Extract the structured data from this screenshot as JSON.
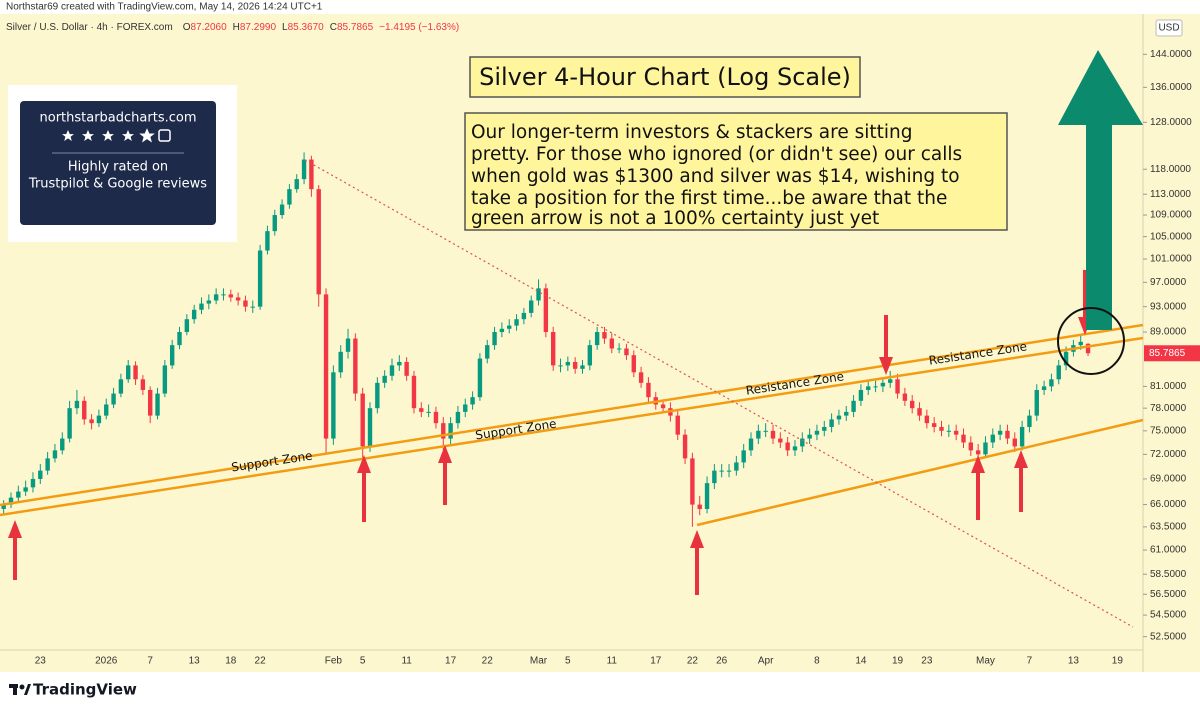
{
  "header": {
    "credit": "Northstar69 created with TradingView.com, May 14, 2026 14:24 UTC+1",
    "symbol": "Silver / U.S. Dollar · 4h · FOREX.com",
    "ohlc_legend": [
      {
        "label": "O",
        "value": "87.2060"
      },
      {
        "label": "H",
        "value": "87.2990"
      },
      {
        "label": "L",
        "value": "85.3670"
      },
      {
        "label": "C",
        "value": "85.7865"
      }
    ],
    "change": "−1.4195 (−1.63%)",
    "currency": "USD"
  },
  "badge": {
    "site": "northstarbadcharts.com",
    "line1": "Highly rated on",
    "line2": "Trustpilot & Google reviews"
  },
  "annotations": {
    "title": "Silver 4-Hour Chart (Log Scale)",
    "note": [
      "Our longer-term investors & stackers are sitting",
      "pretty. For those who ignored (or didn't see) our calls",
      "when gold was $1300 and silver was $14, wishing to",
      "take a position for the first time...be aware that the",
      "green arrow is not a 100% certainty just yet"
    ],
    "zones": [
      "Support Zone",
      "Support Zone",
      "Resistance Zone",
      "Resistance Zone"
    ]
  },
  "footer": {
    "brand": "TradingView"
  },
  "chart_data": {
    "type": "candlestick",
    "log_scale": true,
    "grid": false,
    "up_color": "#089981",
    "down_color": "#f23645",
    "ylim": [
      51.3,
      150.2
    ],
    "yticks": [
      {
        "value": 144,
        "label": "144.0000"
      },
      {
        "value": 136,
        "label": "136.0000"
      },
      {
        "value": 128,
        "label": "128.0000"
      },
      {
        "value": 118,
        "label": "118.0000"
      },
      {
        "value": 113,
        "label": "113.0000"
      },
      {
        "value": 109,
        "label": "109.0000"
      },
      {
        "value": 105,
        "label": "105.0000"
      },
      {
        "value": 101,
        "label": "101.0000"
      },
      {
        "value": 97,
        "label": "97.0000"
      },
      {
        "value": 93,
        "label": "93.0000"
      },
      {
        "value": 89,
        "label": "89.0000"
      },
      {
        "value": 81,
        "label": "81.0000"
      },
      {
        "value": 78,
        "label": "78.0000"
      },
      {
        "value": 75,
        "label": "75.0000"
      },
      {
        "value": 72,
        "label": "72.0000"
      },
      {
        "value": 69,
        "label": "69.0000"
      },
      {
        "value": 66,
        "label": "66.0000"
      },
      {
        "value": 63.5,
        "label": "63.5000"
      },
      {
        "value": 61,
        "label": "61.0000"
      },
      {
        "value": 58.5,
        "label": "58.5000"
      },
      {
        "value": 56.5,
        "label": "56.5000"
      },
      {
        "value": 54.5,
        "label": "54.5000"
      },
      {
        "value": 52.5,
        "label": "52.5000"
      }
    ],
    "last_price": 85.7865,
    "categories": [
      null,
      null,
      null,
      null,
      null,
      "23",
      null,
      null,
      null,
      null,
      null,
      null,
      null,
      null,
      "2026",
      null,
      null,
      null,
      null,
      null,
      "7",
      null,
      null,
      null,
      null,
      null,
      "13",
      null,
      null,
      null,
      null,
      "18",
      null,
      null,
      null,
      "22",
      null,
      null,
      null,
      null,
      null,
      null,
      null,
      null,
      null,
      "Feb",
      null,
      null,
      null,
      "5",
      null,
      null,
      null,
      null,
      null,
      "11",
      null,
      null,
      null,
      null,
      null,
      "17",
      null,
      null,
      null,
      null,
      "22",
      null,
      null,
      null,
      null,
      null,
      null,
      "Mar",
      null,
      null,
      null,
      "5",
      null,
      null,
      null,
      null,
      null,
      "11",
      null,
      null,
      null,
      null,
      null,
      "17",
      null,
      null,
      null,
      null,
      "22",
      null,
      null,
      null,
      "26",
      null,
      null,
      null,
      null,
      null,
      "Apr",
      null,
      null,
      null,
      null,
      null,
      null,
      "8",
      null,
      null,
      null,
      null,
      null,
      "14",
      null,
      null,
      null,
      null,
      "19",
      null,
      null,
      null,
      "23",
      null,
      null,
      null,
      null,
      null,
      null,
      null,
      "May",
      null,
      null,
      null,
      null,
      null,
      "7",
      null,
      null,
      null,
      null,
      null,
      "13",
      null,
      null,
      null,
      null,
      null,
      "19",
      null,
      null,
      null
    ],
    "ohlc": [
      [
        65.5,
        66.5,
        64.8,
        66
      ],
      [
        66,
        67.4,
        65.6,
        66.8
      ],
      [
        66.8,
        68.2,
        66.2,
        67.5
      ],
      [
        67.5,
        68.8,
        67,
        68
      ],
      [
        68,
        69.8,
        67.4,
        69
      ],
      [
        69,
        70.8,
        68.4,
        70
      ],
      [
        70,
        72.3,
        69.5,
        71.5
      ],
      [
        71.5,
        73.3,
        71,
        72.5
      ],
      [
        72.5,
        74.8,
        72,
        74
      ],
      [
        74,
        79,
        73.5,
        78
      ],
      [
        78,
        80.5,
        77.2,
        79
      ],
      [
        79,
        79.6,
        75.8,
        76.5
      ],
      [
        76.5,
        77.2,
        75.2,
        76
      ],
      [
        76,
        77.8,
        75.5,
        77
      ],
      [
        77,
        79.3,
        76.5,
        78.5
      ],
      [
        78.5,
        80.8,
        78,
        80
      ],
      [
        80,
        82.8,
        79.5,
        82
      ],
      [
        82,
        84.8,
        81.5,
        84
      ],
      [
        84,
        84.6,
        81.2,
        82
      ],
      [
        82,
        82.6,
        79.8,
        80.5
      ],
      [
        80.5,
        81,
        76,
        77
      ],
      [
        77,
        80.8,
        76.5,
        80
      ],
      [
        80,
        84.8,
        79.5,
        84
      ],
      [
        84,
        87.8,
        83.5,
        87
      ],
      [
        87,
        89.8,
        86.4,
        89
      ],
      [
        89,
        91.8,
        88.5,
        91
      ],
      [
        91,
        93.3,
        90.3,
        92.5
      ],
      [
        92.5,
        94.5,
        91.8,
        93.5
      ],
      [
        93.5,
        95,
        92.6,
        94
      ],
      [
        94,
        96,
        93.4,
        95
      ],
      [
        95,
        96,
        94,
        95
      ],
      [
        95,
        95.8,
        93.8,
        94.5
      ],
      [
        94.5,
        95.3,
        93.2,
        94
      ],
      [
        94,
        94.8,
        92.2,
        93
      ],
      [
        93,
        94,
        92,
        93
      ],
      [
        93,
        103.5,
        92.5,
        102.5
      ],
      [
        102.5,
        107,
        101.8,
        106
      ],
      [
        106,
        110,
        105.2,
        109
      ],
      [
        109,
        112,
        108.3,
        111
      ],
      [
        111,
        115,
        110.2,
        114
      ],
      [
        114,
        117,
        113.3,
        116
      ],
      [
        116,
        121.5,
        115,
        120
      ],
      [
        120,
        120.8,
        112.5,
        114
      ],
      [
        114,
        114.8,
        93,
        95
      ],
      [
        95,
        96,
        72,
        74
      ],
      [
        74,
        84,
        73.2,
        83
      ],
      [
        83,
        87,
        82.2,
        86
      ],
      [
        86,
        89.5,
        85,
        88
      ],
      [
        88,
        88.8,
        79,
        80
      ],
      [
        80,
        80.8,
        71.5,
        73
      ],
      [
        73,
        78.8,
        72.3,
        78
      ],
      [
        78,
        82.3,
        77.3,
        81.5
      ],
      [
        81.5,
        83.3,
        80.8,
        82.5
      ],
      [
        82.5,
        85,
        81.8,
        84
      ],
      [
        84,
        85.5,
        83.2,
        84.5
      ],
      [
        84.5,
        85.2,
        81.8,
        82.5
      ],
      [
        82.5,
        83.2,
        77.3,
        78
      ],
      [
        78,
        78.8,
        76.8,
        77.5
      ],
      [
        77.5,
        78.5,
        76.8,
        77.5
      ],
      [
        77.5,
        78.2,
        75.3,
        76
      ],
      [
        76,
        76.8,
        72.5,
        74
      ],
      [
        74,
        76.8,
        73.3,
        76
      ],
      [
        76,
        78.3,
        75.3,
        77.5
      ],
      [
        77.5,
        79.3,
        76.8,
        78.5
      ],
      [
        78.5,
        80.3,
        77.8,
        79.5
      ],
      [
        79.5,
        85.8,
        79,
        85
      ],
      [
        85,
        87.8,
        84.3,
        87
      ],
      [
        87,
        89.8,
        86.3,
        89
      ],
      [
        89,
        90.5,
        88.2,
        89.5
      ],
      [
        89.5,
        91,
        88.8,
        90
      ],
      [
        90,
        91.8,
        89.2,
        91
      ],
      [
        91,
        92.8,
        90.2,
        92
      ],
      [
        92,
        94.8,
        91.3,
        94
      ],
      [
        94,
        97.5,
        93.2,
        96
      ],
      [
        96,
        96.8,
        88.2,
        89
      ],
      [
        89,
        89.8,
        83.2,
        84
      ],
      [
        84,
        85,
        83,
        84
      ],
      [
        84,
        85.3,
        83.2,
        84.5
      ],
      [
        84.5,
        85.2,
        82.8,
        83.5
      ],
      [
        83.5,
        84.8,
        82.8,
        84
      ],
      [
        84,
        87.8,
        83.3,
        87
      ],
      [
        87,
        89.8,
        86.3,
        89
      ],
      [
        89,
        89.8,
        87.2,
        88
      ],
      [
        88,
        88.8,
        85.8,
        86.5
      ],
      [
        86.5,
        87.3,
        85.8,
        86.5
      ],
      [
        86.5,
        87.2,
        84.8,
        85.5
      ],
      [
        85.5,
        86.2,
        82.3,
        83
      ],
      [
        83,
        83.8,
        80.8,
        81.5
      ],
      [
        81.5,
        82.3,
        78.8,
        79.5
      ],
      [
        79.5,
        80.2,
        77.8,
        78.5
      ],
      [
        78.5,
        79.2,
        77.3,
        78
      ],
      [
        78,
        78.8,
        76.2,
        77
      ],
      [
        77,
        77.8,
        73.8,
        74.5
      ],
      [
        74.5,
        75.2,
        70.8,
        71.5
      ],
      [
        71.5,
        72.2,
        63.5,
        66
      ],
      [
        66,
        67,
        64.8,
        65.5
      ],
      [
        65.5,
        69.3,
        65,
        68.5
      ],
      [
        68.5,
        70.8,
        67.8,
        70
      ],
      [
        70,
        70.8,
        69.2,
        70
      ],
      [
        70,
        70.8,
        69.2,
        70
      ],
      [
        70,
        71.8,
        69.4,
        71
      ],
      [
        71,
        73.3,
        70.3,
        72.5
      ],
      [
        72.5,
        74.8,
        71.8,
        74
      ],
      [
        74,
        75.8,
        73.3,
        75
      ],
      [
        75,
        76,
        74.2,
        75
      ],
      [
        75,
        75.8,
        73.3,
        74
      ],
      [
        74,
        74.8,
        72.8,
        73.5
      ],
      [
        73.5,
        74.2,
        71.8,
        72.5
      ],
      [
        72.5,
        73.8,
        71.8,
        73
      ],
      [
        73,
        74.8,
        72.3,
        74
      ],
      [
        74,
        75.3,
        73.3,
        74.5
      ],
      [
        74.5,
        75.8,
        73.8,
        75
      ],
      [
        75,
        76.3,
        74.3,
        75.5
      ],
      [
        75.5,
        77.3,
        74.8,
        76.5
      ],
      [
        76.5,
        77.8,
        75.8,
        77
      ],
      [
        77,
        78.3,
        76.3,
        77.5
      ],
      [
        77.5,
        79.8,
        76.8,
        79
      ],
      [
        79,
        81.3,
        78.3,
        80.5
      ],
      [
        80.5,
        81.8,
        79.8,
        81
      ],
      [
        81,
        81.8,
        80.2,
        81
      ],
      [
        81,
        82.3,
        80.2,
        81.5
      ],
      [
        81.5,
        83.2,
        80.8,
        82
      ],
      [
        82,
        82.8,
        79.3,
        80
      ],
      [
        80,
        80.8,
        78.3,
        79
      ],
      [
        79,
        79.8,
        77.3,
        78
      ],
      [
        78,
        78.8,
        76.3,
        77
      ],
      [
        77,
        77.8,
        75.3,
        76
      ],
      [
        76,
        76.8,
        74.8,
        75.5
      ],
      [
        75.5,
        76.3,
        74.3,
        75
      ],
      [
        75,
        75.8,
        74.2,
        75
      ],
      [
        75,
        75.8,
        73.8,
        74.5
      ],
      [
        74.5,
        75.3,
        72.8,
        73.5
      ],
      [
        73.5,
        74.3,
        71.8,
        72.5
      ],
      [
        72.5,
        73.3,
        71.3,
        72
      ],
      [
        72,
        74.3,
        71.5,
        73.5
      ],
      [
        73.5,
        75.3,
        72.8,
        74.5
      ],
      [
        74.5,
        75.8,
        73.8,
        75
      ],
      [
        75,
        75.8,
        73.3,
        74
      ],
      [
        74,
        74.8,
        72.3,
        73
      ],
      [
        73,
        76.3,
        72.5,
        75.5
      ],
      [
        75.5,
        77.8,
        74.8,
        77
      ],
      [
        77,
        81.3,
        76.3,
        80.5
      ],
      [
        80.5,
        81.8,
        79.8,
        81
      ],
      [
        81,
        82.8,
        80.3,
        82
      ],
      [
        82,
        84.8,
        81.3,
        84
      ],
      [
        84,
        86.8,
        83.3,
        86
      ],
      [
        86,
        87.8,
        85.3,
        87
      ],
      [
        87,
        88.5,
        86.3,
        87.5
      ],
      [
        87.206,
        87.299,
        85.367,
        85.7865
      ],
      null,
      null,
      null,
      null,
      null,
      null,
      null
    ]
  }
}
